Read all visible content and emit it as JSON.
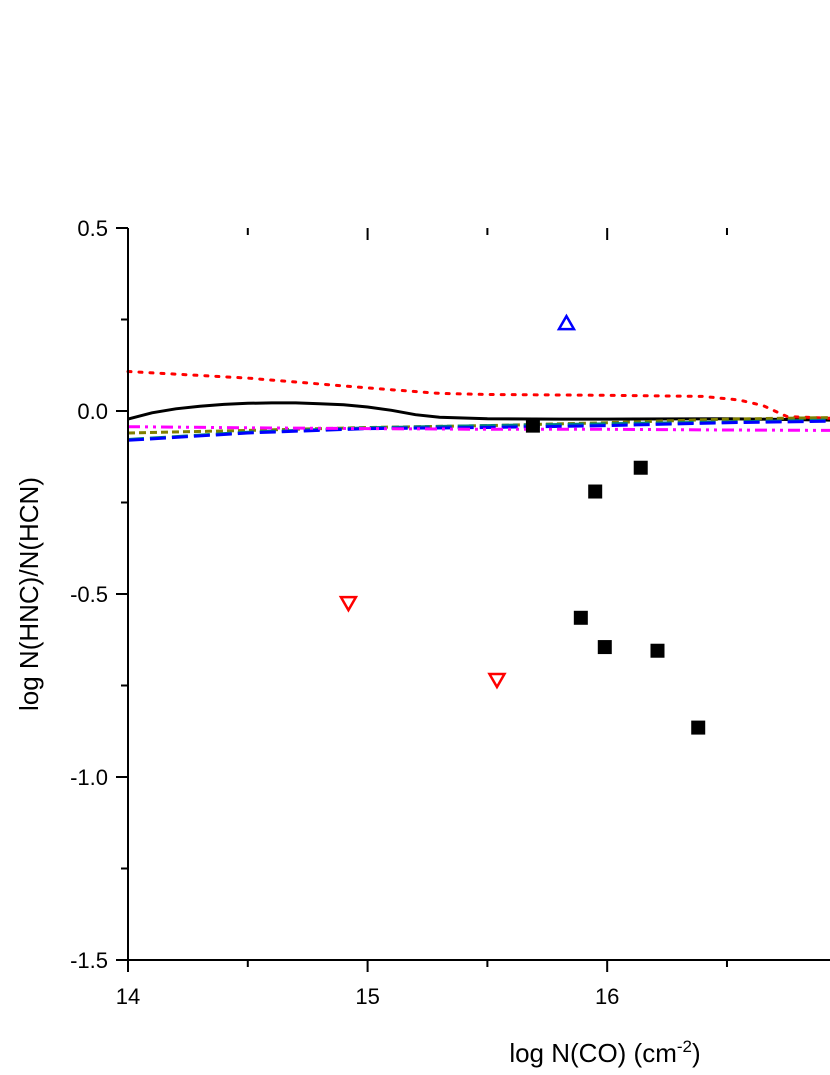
{
  "chart_data": {
    "type": "scatter",
    "xlabel": "log N(CO) (cm",
    "xlabel_sup": "-2",
    "xlabel_end": ")",
    "ylabel": "log N(HNC)/N(HCN)",
    "xlim": [
      14,
      16.93
    ],
    "ylim": [
      -1.5,
      0.5
    ],
    "x_ticks": [
      "14",
      "15",
      "16"
    ],
    "y_ticks": [
      "0.5",
      "0.0",
      "-0.5",
      "-1.0",
      "-1.5"
    ],
    "grid": false,
    "legend": "none",
    "lines": [
      {
        "style": "solid",
        "color": "#000000",
        "x": [
          14.0,
          14.1,
          14.2,
          14.3,
          14.4,
          14.5,
          14.6,
          14.7,
          14.8,
          14.9,
          15.0,
          15.1,
          15.2,
          15.3,
          15.5,
          15.8,
          16.0,
          16.5,
          16.93
        ],
        "y": [
          -0.022,
          -0.005,
          0.006,
          0.013,
          0.018,
          0.021,
          0.022,
          0.022,
          0.02,
          0.017,
          0.011,
          0.002,
          -0.01,
          -0.017,
          -0.021,
          -0.022,
          -0.022,
          -0.021,
          -0.025
        ]
      },
      {
        "style": "dotted",
        "color": "#ff0000",
        "x": [
          14.0,
          14.5,
          15.0,
          15.3,
          15.5,
          16.0,
          16.4,
          16.55,
          16.65,
          16.75,
          16.93
        ],
        "y": [
          0.108,
          0.09,
          0.063,
          0.048,
          0.045,
          0.043,
          0.04,
          0.03,
          0.015,
          -0.015,
          -0.02
        ]
      },
      {
        "style": "dashed",
        "color": "#808000",
        "x": [
          14.0,
          14.5,
          15.0,
          15.5,
          16.0,
          16.5,
          16.93
        ],
        "y": [
          -0.06,
          -0.053,
          -0.045,
          -0.04,
          -0.032,
          -0.022,
          -0.018
        ]
      },
      {
        "style": "dash",
        "color": "#008080",
        "x": [
          14.0,
          14.5,
          15.0,
          15.5,
          16.0,
          16.5,
          16.93
        ],
        "y": [
          -0.078,
          -0.058,
          -0.046,
          -0.04,
          -0.035,
          -0.03,
          -0.025
        ]
      },
      {
        "style": "dash",
        "color": "#0000ff",
        "x": [
          14.0,
          14.5,
          15.0,
          15.5,
          16.0,
          16.5,
          16.93
        ],
        "y": [
          -0.08,
          -0.06,
          -0.048,
          -0.045,
          -0.04,
          -0.032,
          -0.028
        ]
      },
      {
        "style": "dash-dot-dot",
        "color": "#ff00ff",
        "x": [
          14.0,
          14.5,
          15.0,
          15.5,
          16.0,
          16.5,
          16.93
        ],
        "y": [
          -0.043,
          -0.046,
          -0.048,
          -0.05,
          -0.05,
          -0.052,
          -0.053
        ]
      }
    ],
    "points": [
      {
        "marker": "square",
        "color": "#000000",
        "x": [
          15.69,
          15.95,
          16.14,
          15.89,
          15.99,
          16.21,
          16.38
        ],
        "y": [
          -0.04,
          -0.22,
          -0.155,
          -0.565,
          -0.645,
          -0.655,
          -0.865
        ]
      },
      {
        "marker": "triangle-up-open",
        "color": "#0000ff",
        "x": [
          15.83
        ],
        "y": [
          0.24
        ]
      },
      {
        "marker": "triangle-down-open",
        "color": "#ff0000",
        "x": [
          14.92,
          15.54
        ],
        "y": [
          -0.525,
          -0.735
        ]
      }
    ]
  }
}
